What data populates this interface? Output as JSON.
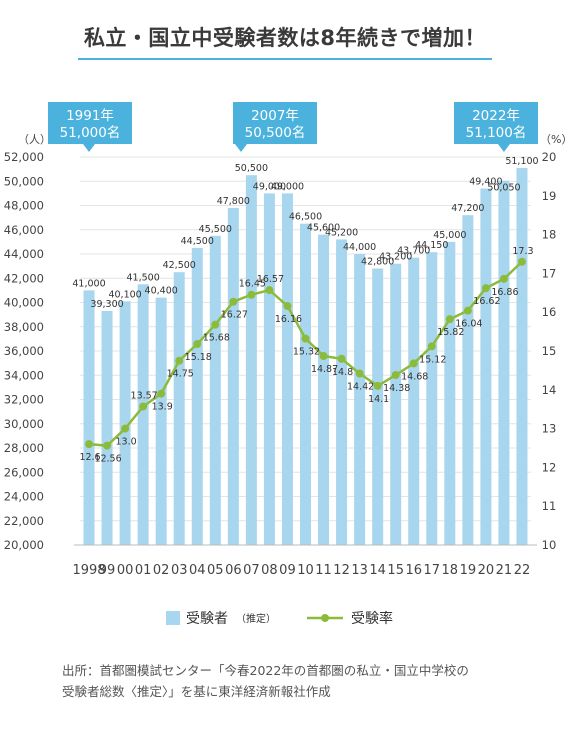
{
  "title": "私立・国立中受験者数は8年続きで増加！",
  "left_unit": "（人）",
  "right_unit": "（%）",
  "legend": {
    "bar_label": "受験者",
    "bar_sub": "（推定）",
    "line_label": "受験率"
  },
  "callouts": [
    {
      "line1": "1991年",
      "line2": "51,000名"
    },
    {
      "line1": "2007年",
      "line2": "50,500名"
    },
    {
      "line1": "2022年",
      "line2": "51,100名"
    }
  ],
  "source_line1": "出所：首都圏模試センター「今春2022年の首都圏の私立・国立中学校の",
  "source_line2": "受験者総数〈推定〉」を基に東洋経済新報社作成",
  "colors": {
    "bar": "#a8d6ee",
    "line": "#8cbb3c",
    "accent": "#4ab2dc",
    "grid": "#e4e4e4"
  },
  "chart_data": {
    "type": "bar+line",
    "categories": [
      "1998",
      "99",
      "00",
      "01",
      "02",
      "03",
      "04",
      "05",
      "06",
      "07",
      "08",
      "09",
      "10",
      "11",
      "12",
      "13",
      "14",
      "15",
      "16",
      "17",
      "18",
      "19",
      "20",
      "21",
      "22"
    ],
    "series": [
      {
        "name": "受験者（推定）",
        "type": "bar",
        "axis": "left",
        "values": [
          41000,
          39300,
          40100,
          41500,
          40400,
          42500,
          44500,
          45500,
          47800,
          50500,
          49000,
          49000,
          46500,
          45600,
          45200,
          44000,
          42800,
          43200,
          43700,
          44150,
          45000,
          47200,
          49400,
          50050,
          51100
        ],
        "labels": [
          "41,000",
          "39,300",
          "40,100",
          "41,500",
          "40,400",
          "42,500",
          "44,500",
          "45,500",
          "47,800",
          "50,500",
          "49,000",
          "49,000",
          "46,500",
          "45,600",
          "45,200",
          "44,000",
          "42,800",
          "43,200",
          "43,700",
          "44,150",
          "45,000",
          "47,200",
          "49,400",
          "50,050",
          "51,100"
        ]
      },
      {
        "name": "受験率",
        "type": "line",
        "axis": "right",
        "values": [
          12.6,
          12.56,
          13.0,
          13.57,
          13.9,
          14.75,
          15.18,
          15.68,
          16.27,
          16.45,
          16.57,
          16.16,
          15.32,
          14.87,
          14.8,
          14.42,
          14.1,
          14.38,
          14.68,
          15.12,
          15.82,
          16.04,
          16.62,
          16.86,
          17.3
        ],
        "labels": [
          "12.6",
          "12.56",
          "13.0",
          "13.57",
          "13.9",
          "14.75",
          "15.18",
          "15.68",
          "16.27",
          "16.45",
          "16.57",
          "16.16",
          "15.32",
          "14.87",
          "14.8",
          "14.42",
          "14.1",
          "14.38",
          "14.68",
          "15.12",
          "15.82",
          "16.04",
          "16.62",
          "16.86",
          "17.3"
        ]
      }
    ],
    "left_axis": {
      "ylim": [
        20000,
        52000
      ],
      "ticks": [
        "20,000",
        "22,000",
        "24,000",
        "26,000",
        "28,000",
        "30,000",
        "32,000",
        "34,000",
        "36,000",
        "38,000",
        "40,000",
        "42,000",
        "44,000",
        "46,000",
        "48,000",
        "50,000",
        "52,000"
      ]
    },
    "right_axis": {
      "ylim": [
        10,
        20
      ],
      "ticks": [
        "10",
        "11",
        "12",
        "13",
        "14",
        "15",
        "16",
        "17",
        "18",
        "19",
        "20"
      ]
    },
    "grid": true,
    "legend_position": "bottom"
  }
}
